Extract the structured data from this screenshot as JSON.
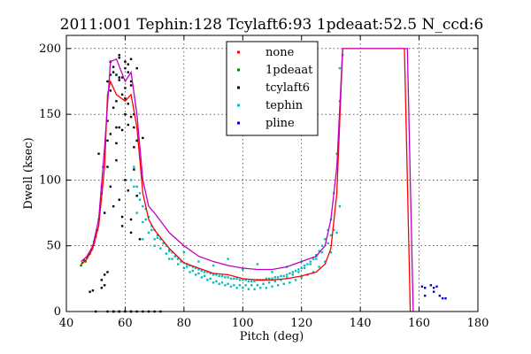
{
  "chart_data": {
    "type": "scatter",
    "title": "2011:001 Tephin:128 Tcylaft6:93 1pdeaat:52.5 N_ccd:6",
    "xlabel": "Pitch (deg)",
    "ylabel": "Dwell (ksec)",
    "xlim": [
      40,
      180
    ],
    "ylim": [
      0,
      210
    ],
    "xticks": [
      40,
      60,
      80,
      100,
      120,
      140,
      160,
      180
    ],
    "yticks": [
      0,
      50,
      100,
      150,
      200
    ],
    "xtick_labels": [
      "40",
      "60",
      "80",
      "100",
      "120",
      "140",
      "160",
      "180"
    ],
    "ytick_labels": [
      "0",
      "50",
      "100",
      "150",
      "200"
    ],
    "grid": true,
    "legend_position": "top-center",
    "legend": [
      "none",
      "1pdeaat",
      "tcylaft6",
      "tephin",
      "pline"
    ],
    "series": [
      {
        "name": "none",
        "kind": "line",
        "color": "#ff0000",
        "x": [
          45,
          47,
          49,
          51,
          53,
          54,
          55,
          57,
          60,
          62,
          64,
          66,
          68,
          70,
          75,
          80,
          85,
          90,
          95,
          100,
          105,
          110,
          115,
          120,
          125,
          128,
          130,
          132,
          134,
          140,
          150,
          155,
          157
        ],
        "y": [
          36,
          40,
          48,
          65,
          110,
          165,
          175,
          165,
          160,
          165,
          140,
          90,
          70,
          62,
          48,
          37,
          33,
          29,
          28,
          25,
          24,
          24,
          25,
          27,
          30,
          36,
          48,
          90,
          200,
          200,
          200,
          200,
          0
        ]
      },
      {
        "name": "pline",
        "kind": "line",
        "color": "#c000c0",
        "x": [
          45,
          47,
          49,
          51,
          53,
          55,
          57,
          60,
          62,
          64,
          66,
          68,
          70,
          75,
          80,
          85,
          90,
          95,
          100,
          105,
          110,
          115,
          120,
          125,
          128,
          130,
          132,
          134,
          140,
          150,
          156,
          158
        ],
        "y": [
          38,
          42,
          50,
          70,
          125,
          190,
          192,
          175,
          182,
          150,
          100,
          80,
          75,
          60,
          50,
          42,
          38,
          35,
          33,
          32,
          32,
          34,
          38,
          42,
          50,
          70,
          110,
          200,
          200,
          200,
          200,
          0
        ]
      },
      {
        "name": "1pdeaat",
        "kind": "points",
        "color": "#008000",
        "x": [
          45,
          45.5,
          46,
          46.5,
          47,
          47.5,
          48,
          48.5,
          49,
          49.5,
          50,
          50.5,
          51,
          51.5,
          52,
          52.5
        ],
        "y": [
          35,
          37,
          39,
          38,
          41,
          43,
          44,
          47,
          50,
          53,
          57,
          62,
          70,
          80,
          95,
          110
        ]
      },
      {
        "name": "tcylaft6",
        "kind": "points",
        "color": "#000000",
        "x": [
          48,
          49,
          52,
          53,
          54,
          55,
          56,
          57,
          58,
          59,
          60,
          61,
          62,
          55,
          56,
          57,
          58,
          59,
          60,
          61,
          62,
          63,
          54,
          56,
          58,
          60,
          62,
          64,
          53,
          55,
          57,
          59,
          61,
          63,
          54,
          57,
          60,
          63,
          52,
          55,
          58,
          61,
          64,
          53,
          56,
          59,
          62,
          58,
          60,
          62,
          64,
          55,
          58,
          61,
          59,
          62,
          65,
          51,
          54,
          57,
          60,
          63,
          66,
          52,
          53,
          54,
          56,
          58,
          60,
          62,
          64,
          66,
          68,
          70,
          72,
          50,
          54,
          56,
          58,
          62
        ],
        "y": [
          15,
          16,
          18,
          20,
          175,
          190,
          186,
          180,
          193,
          178,
          170,
          188,
          172,
          168,
          182,
          160,
          176,
          165,
          185,
          158,
          175,
          150,
          145,
          155,
          140,
          162,
          148,
          130,
          120,
          135,
          128,
          138,
          142,
          125,
          110,
          115,
          100,
          108,
          90,
          95,
          85,
          92,
          88,
          75,
          80,
          72,
          70,
          195,
          190,
          192,
          185,
          180,
          178,
          182,
          65,
          60,
          55,
          120,
          130,
          140,
          150,
          140,
          132,
          24,
          28,
          30,
          0,
          0,
          0,
          0,
          0,
          0,
          0,
          0,
          0,
          0,
          0,
          0,
          0,
          0
        ]
      },
      {
        "name": "tephin",
        "kind": "points",
        "color": "#00bfbf",
        "x": [
          63,
          64,
          65,
          66,
          67,
          68,
          69,
          70,
          71,
          72,
          73,
          74,
          75,
          76,
          77,
          78,
          79,
          80,
          81,
          82,
          83,
          84,
          85,
          86,
          87,
          88,
          89,
          90,
          91,
          92,
          93,
          94,
          95,
          96,
          97,
          98,
          99,
          100,
          101,
          102,
          103,
          104,
          105,
          106,
          107,
          108,
          109,
          110,
          111,
          112,
          113,
          114,
          115,
          116,
          117,
          118,
          119,
          120,
          121,
          122,
          123,
          124,
          125,
          126,
          127,
          128,
          129,
          130,
          131,
          132,
          133,
          64,
          66,
          68,
          70,
          72,
          74,
          76,
          78,
          80,
          82,
          84,
          86,
          88,
          90,
          92,
          94,
          96,
          98,
          100,
          102,
          104,
          106,
          108,
          110,
          112,
          114,
          116,
          118,
          120,
          122,
          124,
          126,
          128,
          130,
          132,
          65,
          67,
          69,
          71,
          73,
          75,
          77,
          79,
          81,
          83,
          85,
          87,
          89,
          91,
          93,
          95,
          97,
          99,
          101,
          103,
          105,
          107,
          109,
          111,
          113,
          115,
          117,
          119,
          121,
          123,
          125,
          127,
          129,
          131,
          133,
          134,
          62,
          63,
          66,
          70,
          75,
          80,
          85,
          90,
          95,
          100,
          105,
          110,
          115,
          120,
          125,
          130,
          133
        ],
        "y": [
          110,
          95,
          85,
          80,
          78,
          72,
          65,
          62,
          58,
          55,
          52,
          50,
          47,
          45,
          42,
          40,
          38,
          37,
          36,
          35,
          34,
          33,
          32,
          31,
          30,
          30,
          29,
          28,
          28,
          27,
          27,
          26,
          26,
          25,
          25,
          25,
          24,
          24,
          24,
          23,
          23,
          23,
          24,
          24,
          24,
          25,
          25,
          25,
          26,
          26,
          27,
          27,
          28,
          29,
          30,
          31,
          32,
          33,
          35,
          36,
          38,
          40,
          43,
          46,
          50,
          55,
          62,
          70,
          90,
          120,
          160,
          75,
          68,
          60,
          55,
          48,
          44,
          40,
          36,
          33,
          30,
          28,
          26,
          24,
          22,
          21,
          20,
          19,
          18,
          18,
          17,
          17,
          18,
          18,
          19,
          20,
          21,
          22,
          24,
          26,
          28,
          30,
          34,
          38,
          45,
          60,
          90,
          70,
          62,
          56,
          52,
          46,
          42,
          38,
          34,
          31,
          29,
          27,
          25,
          23,
          22,
          21,
          20,
          20,
          20,
          20,
          20,
          21,
          22,
          23,
          24,
          26,
          28,
          30,
          33,
          36,
          40,
          45,
          52,
          62,
          80,
          195,
          100,
          95,
          55,
          50,
          40,
          45,
          38,
          35,
          40,
          32,
          36,
          30,
          34,
          38,
          42,
          58,
          185
        ]
      },
      {
        "name": "pline",
        "kind": "points",
        "color": "#0000cc",
        "x": [
          161,
          162,
          164,
          165,
          166,
          167,
          168,
          169,
          162,
          165
        ],
        "y": [
          19,
          18,
          20,
          15,
          19,
          12,
          10,
          10,
          12,
          18
        ]
      }
    ]
  }
}
